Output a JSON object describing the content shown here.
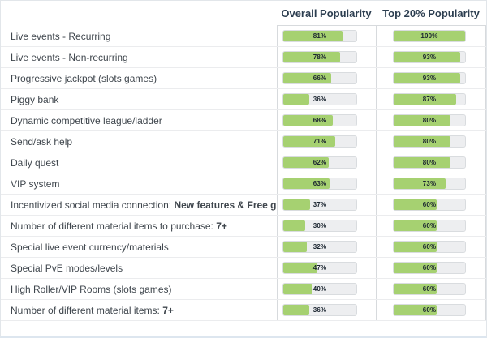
{
  "header": {
    "col1": "Overall Popularity",
    "col2": "Top 20% Popularity"
  },
  "chart_data": {
    "type": "bar",
    "orientation": "horizontal",
    "value_range": [
      0,
      100
    ],
    "grid": false,
    "legend_position": "column-headers",
    "series_names": [
      "Overall Popularity",
      "Top 20% Popularity"
    ],
    "colors": {
      "bar_fill": "#a6d171",
      "bar_track": "#edeef0",
      "header_text": "#2c3e50",
      "label_text": "#3f464d",
      "percent_text": "#1b2530"
    },
    "rows": [
      {
        "label": "Live events - Recurring",
        "label_bold": "",
        "overall": 81,
        "overall_label": "81%",
        "top20": 100,
        "top20_label": "100%"
      },
      {
        "label": "Live events - Non-recurring",
        "label_bold": "",
        "overall": 78,
        "overall_label": "78%",
        "top20": 93,
        "top20_label": "93%"
      },
      {
        "label": "Progressive jackpot (slots games)",
        "label_bold": "",
        "overall": 66,
        "overall_label": "66%",
        "top20": 93,
        "top20_label": "93%"
      },
      {
        "label": "Piggy bank",
        "label_bold": "",
        "overall": 36,
        "overall_label": "36%",
        "top20": 87,
        "top20_label": "87%"
      },
      {
        "label": "Dynamic competitive league/ladder",
        "label_bold": "",
        "overall": 68,
        "overall_label": "68%",
        "top20": 80,
        "top20_label": "80%"
      },
      {
        "label": "Send/ask help",
        "label_bold": "",
        "overall": 71,
        "overall_label": "71%",
        "top20": 80,
        "top20_label": "80%"
      },
      {
        "label": "Daily quest",
        "label_bold": "",
        "overall": 62,
        "overall_label": "62%",
        "top20": 80,
        "top20_label": "80%"
      },
      {
        "label": "VIP system",
        "label_bold": "",
        "overall": 63,
        "overall_label": "63%",
        "top20": 73,
        "top20_label": "73%"
      },
      {
        "label": "Incentivized social media connection: ",
        "label_bold": "New features & Free gifts",
        "overall": 37,
        "overall_label": "37%",
        "top20": 60,
        "top20_label": "60%"
      },
      {
        "label": "Number of different material items to purchase: ",
        "label_bold": "7+",
        "overall": 30,
        "overall_label": "30%",
        "top20": 60,
        "top20_label": "60%"
      },
      {
        "label": "Special live event currency/materials",
        "label_bold": "",
        "overall": 32,
        "overall_label": "32%",
        "top20": 60,
        "top20_label": "60%"
      },
      {
        "label": "Special PvE modes/levels",
        "label_bold": "",
        "overall": 47,
        "overall_label": "47%",
        "top20": 60,
        "top20_label": "60%"
      },
      {
        "label": "High Roller/VIP Rooms (slots games)",
        "label_bold": "",
        "overall": 40,
        "overall_label": "40%",
        "top20": 60,
        "top20_label": "60%"
      },
      {
        "label": "Number of different material items: ",
        "label_bold": "7+",
        "overall": 36,
        "overall_label": "36%",
        "top20": 60,
        "top20_label": "60%"
      }
    ]
  }
}
